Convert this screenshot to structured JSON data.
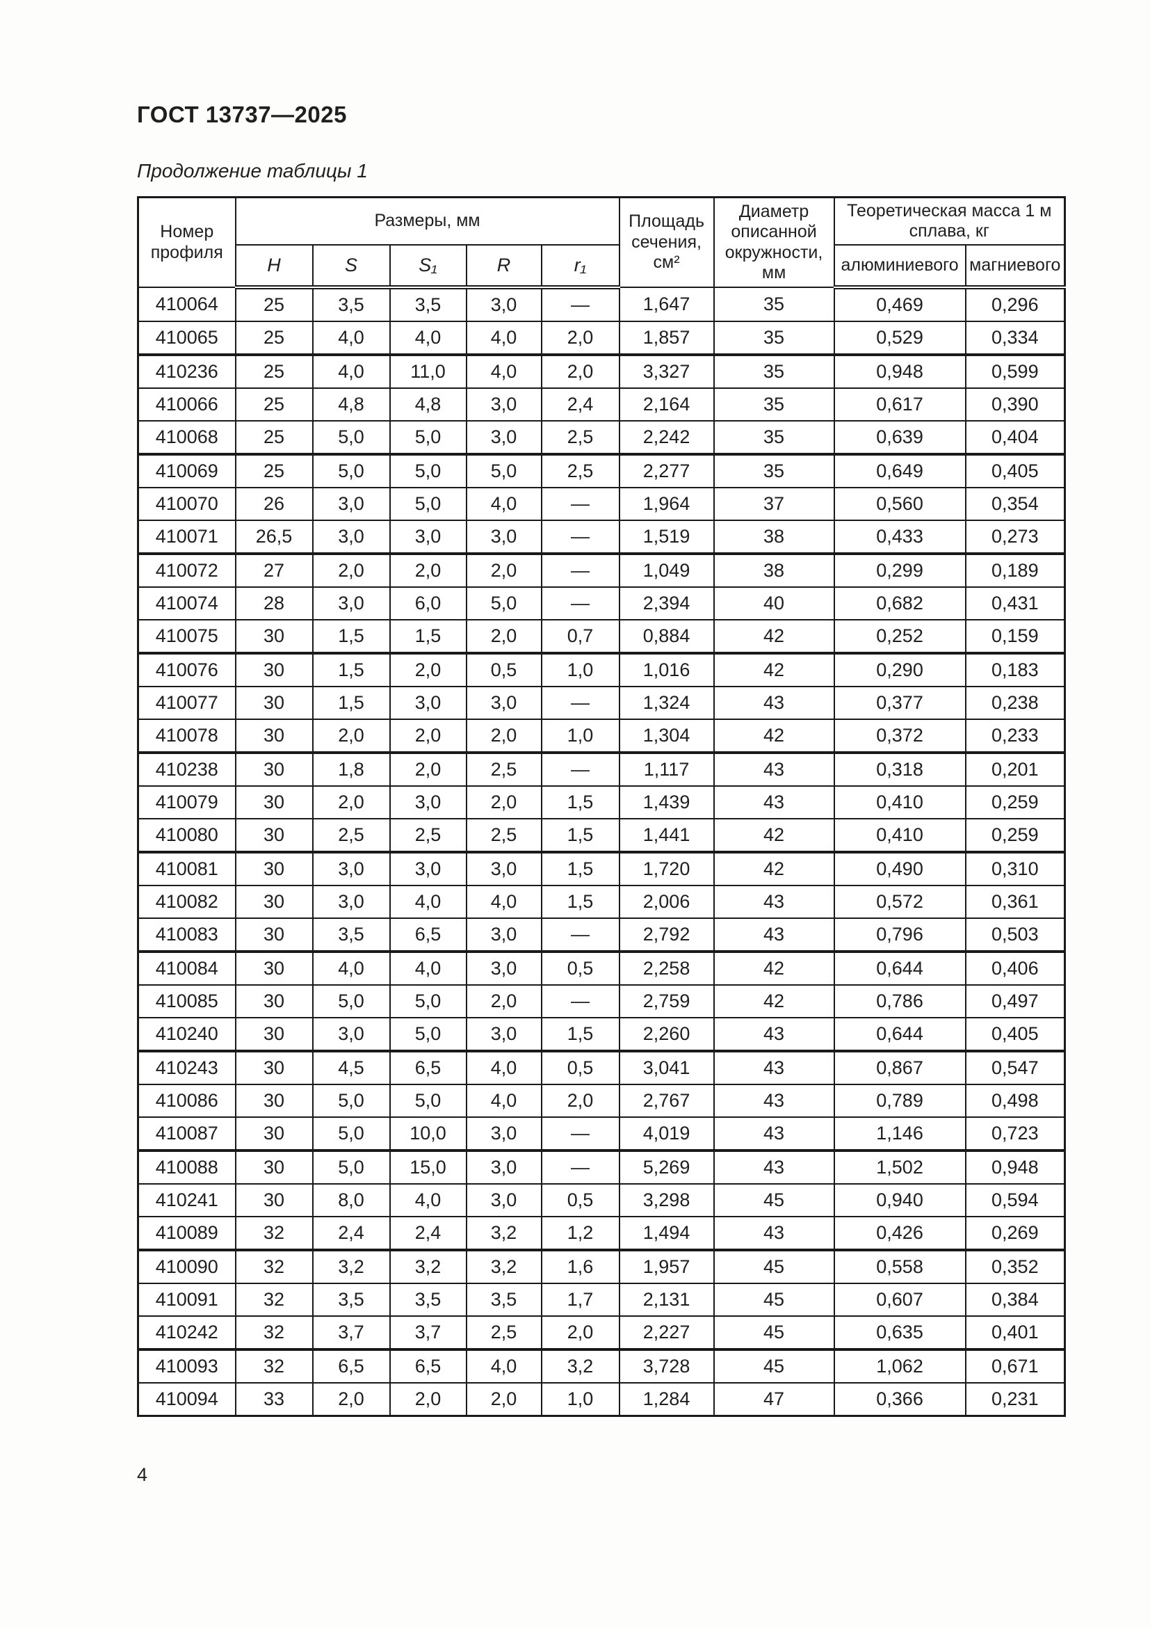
{
  "page": {
    "doc_code": "ГОСТ 13737—2025",
    "table_caption": "Продолжение таблицы 1",
    "page_number": "4"
  },
  "table": {
    "header": {
      "profile": "Номер профиля",
      "dimensions": "Размеры, мм",
      "dims": [
        "H",
        "S",
        "S₁",
        "R",
        "r₁"
      ],
      "area": "Площадь сечения, см²",
      "diameter": "Диаметр описанной окружности, мм",
      "mass": "Теоретическая масса 1 м сплава, кг",
      "mass_cols": [
        "алюминиевого",
        "магниевого"
      ]
    },
    "rows": [
      [
        "410064",
        "25",
        "3,5",
        "3,5",
        "3,0",
        "—",
        "1,647",
        "35",
        "0,469",
        "0,296"
      ],
      [
        "410065",
        "25",
        "4,0",
        "4,0",
        "4,0",
        "2,0",
        "1,857",
        "35",
        "0,529",
        "0,334"
      ],
      [
        "410236",
        "25",
        "4,0",
        "11,0",
        "4,0",
        "2,0",
        "3,327",
        "35",
        "0,948",
        "0,599"
      ],
      [
        "410066",
        "25",
        "4,8",
        "4,8",
        "3,0",
        "2,4",
        "2,164",
        "35",
        "0,617",
        "0,390"
      ],
      [
        "410068",
        "25",
        "5,0",
        "5,0",
        "3,0",
        "2,5",
        "2,242",
        "35",
        "0,639",
        "0,404"
      ],
      [
        "410069",
        "25",
        "5,0",
        "5,0",
        "5,0",
        "2,5",
        "2,277",
        "35",
        "0,649",
        "0,405"
      ],
      [
        "410070",
        "26",
        "3,0",
        "5,0",
        "4,0",
        "—",
        "1,964",
        "37",
        "0,560",
        "0,354"
      ],
      [
        "410071",
        "26,5",
        "3,0",
        "3,0",
        "3,0",
        "—",
        "1,519",
        "38",
        "0,433",
        "0,273"
      ],
      [
        "410072",
        "27",
        "2,0",
        "2,0",
        "2,0",
        "—",
        "1,049",
        "38",
        "0,299",
        "0,189"
      ],
      [
        "410074",
        "28",
        "3,0",
        "6,0",
        "5,0",
        "—",
        "2,394",
        "40",
        "0,682",
        "0,431"
      ],
      [
        "410075",
        "30",
        "1,5",
        "1,5",
        "2,0",
        "0,7",
        "0,884",
        "42",
        "0,252",
        "0,159"
      ],
      [
        "410076",
        "30",
        "1,5",
        "2,0",
        "0,5",
        "1,0",
        "1,016",
        "42",
        "0,290",
        "0,183"
      ],
      [
        "410077",
        "30",
        "1,5",
        "3,0",
        "3,0",
        "—",
        "1,324",
        "43",
        "0,377",
        "0,238"
      ],
      [
        "410078",
        "30",
        "2,0",
        "2,0",
        "2,0",
        "1,0",
        "1,304",
        "42",
        "0,372",
        "0,233"
      ],
      [
        "410238",
        "30",
        "1,8",
        "2,0",
        "2,5",
        "—",
        "1,117",
        "43",
        "0,318",
        "0,201"
      ],
      [
        "410079",
        "30",
        "2,0",
        "3,0",
        "2,0",
        "1,5",
        "1,439",
        "43",
        "0,410",
        "0,259"
      ],
      [
        "410080",
        "30",
        "2,5",
        "2,5",
        "2,5",
        "1,5",
        "1,441",
        "42",
        "0,410",
        "0,259"
      ],
      [
        "410081",
        "30",
        "3,0",
        "3,0",
        "3,0",
        "1,5",
        "1,720",
        "42",
        "0,490",
        "0,310"
      ],
      [
        "410082",
        "30",
        "3,0",
        "4,0",
        "4,0",
        "1,5",
        "2,006",
        "43",
        "0,572",
        "0,361"
      ],
      [
        "410083",
        "30",
        "3,5",
        "6,5",
        "3,0",
        "—",
        "2,792",
        "43",
        "0,796",
        "0,503"
      ],
      [
        "410084",
        "30",
        "4,0",
        "4,0",
        "3,0",
        "0,5",
        "2,258",
        "42",
        "0,644",
        "0,406"
      ],
      [
        "410085",
        "30",
        "5,0",
        "5,0",
        "2,0",
        "—",
        "2,759",
        "42",
        "0,786",
        "0,497"
      ],
      [
        "410240",
        "30",
        "3,0",
        "5,0",
        "3,0",
        "1,5",
        "2,260",
        "43",
        "0,644",
        "0,405"
      ],
      [
        "410243",
        "30",
        "4,5",
        "6,5",
        "4,0",
        "0,5",
        "3,041",
        "43",
        "0,867",
        "0,547"
      ],
      [
        "410086",
        "30",
        "5,0",
        "5,0",
        "4,0",
        "2,0",
        "2,767",
        "43",
        "0,789",
        "0,498"
      ],
      [
        "410087",
        "30",
        "5,0",
        "10,0",
        "3,0",
        "—",
        "4,019",
        "43",
        "1,146",
        "0,723"
      ],
      [
        "410088",
        "30",
        "5,0",
        "15,0",
        "3,0",
        "—",
        "5,269",
        "43",
        "1,502",
        "0,948"
      ],
      [
        "410241",
        "30",
        "8,0",
        "4,0",
        "3,0",
        "0,5",
        "3,298",
        "45",
        "0,940",
        "0,594"
      ],
      [
        "410089",
        "32",
        "2,4",
        "2,4",
        "3,2",
        "1,2",
        "1,494",
        "43",
        "0,426",
        "0,269"
      ],
      [
        "410090",
        "32",
        "3,2",
        "3,2",
        "3,2",
        "1,6",
        "1,957",
        "45",
        "0,558",
        "0,352"
      ],
      [
        "410091",
        "32",
        "3,5",
        "3,5",
        "3,5",
        "1,7",
        "2,131",
        "45",
        "0,607",
        "0,384"
      ],
      [
        "410242",
        "32",
        "3,7",
        "3,7",
        "2,5",
        "2,0",
        "2,227",
        "45",
        "0,635",
        "0,401"
      ],
      [
        "410093",
        "32",
        "6,5",
        "6,5",
        "4,0",
        "3,2",
        "3,728",
        "45",
        "1,062",
        "0,671"
      ],
      [
        "410094",
        "33",
        "2,0",
        "2,0",
        "2,0",
        "1,0",
        "1,284",
        "47",
        "0,366",
        "0,231"
      ]
    ]
  }
}
